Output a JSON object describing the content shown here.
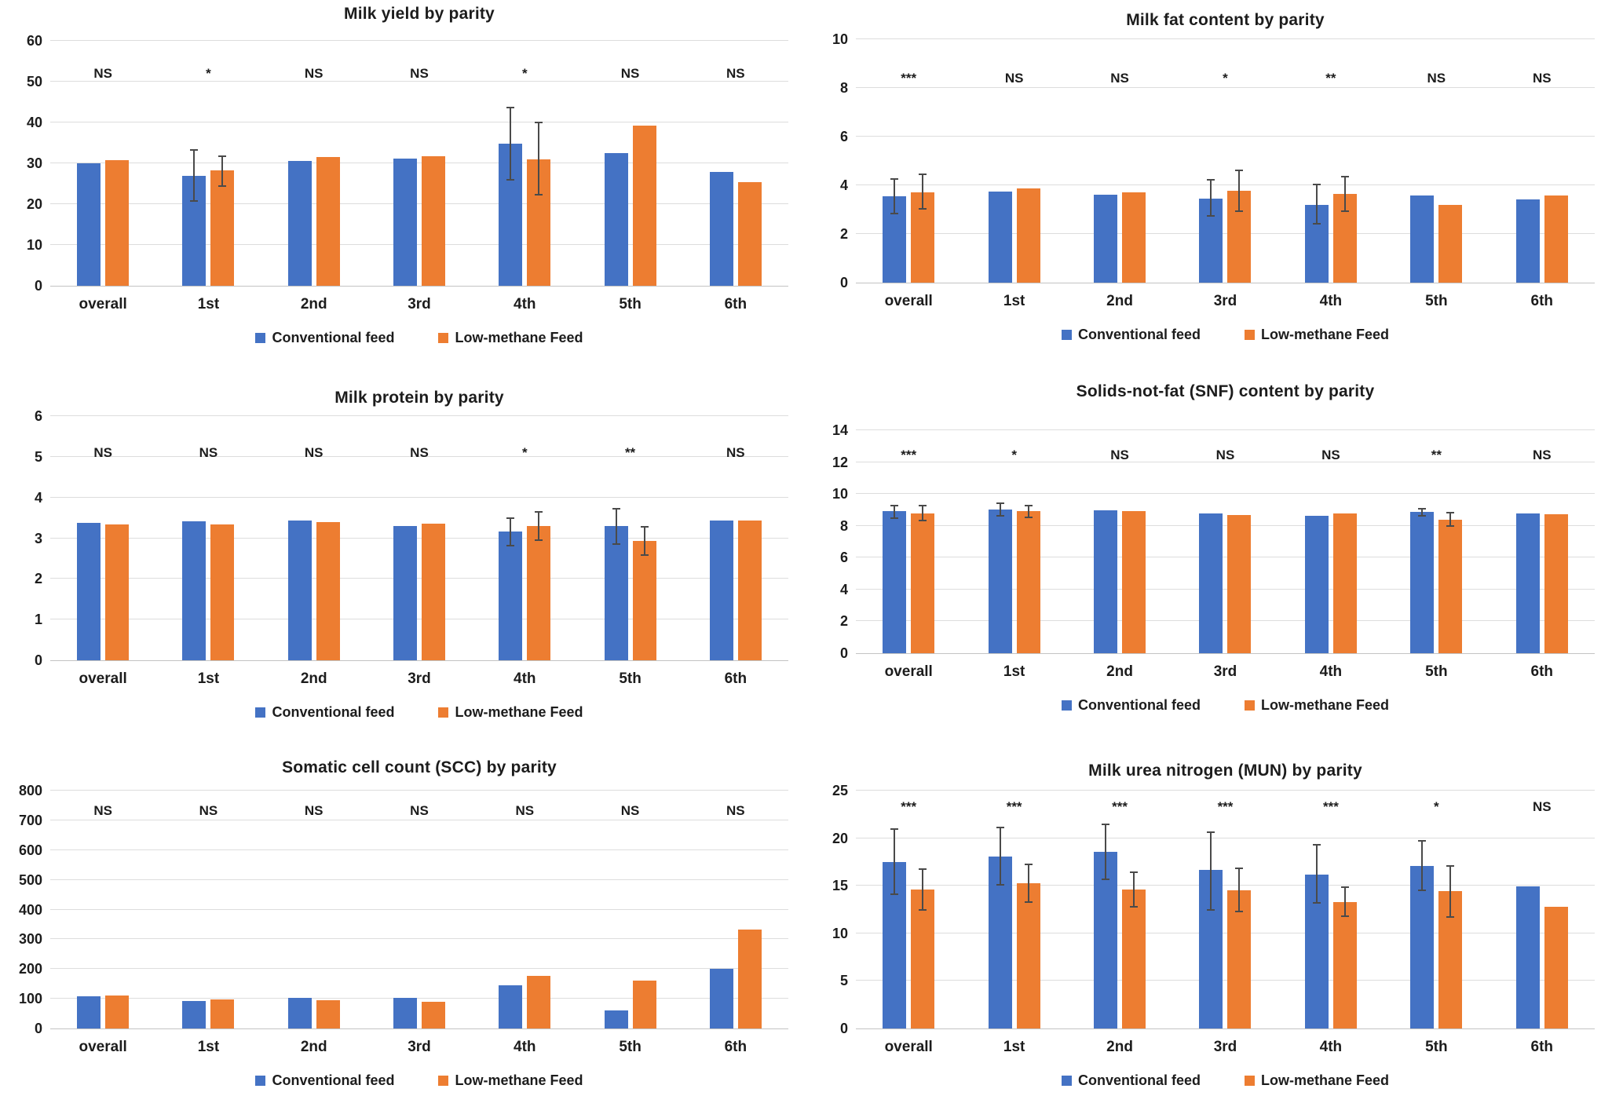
{
  "legend": {
    "items": [
      {
        "label": "Conventional feed",
        "color": "#4472C4"
      },
      {
        "label": "Low-methane Feed",
        "color": "#ED7D31"
      }
    ]
  },
  "colors": {
    "series_blue": "#4472C4",
    "series_orange": "#ED7D31",
    "gridline": "#DDDDDD",
    "error_bar": "#4A4A4A",
    "text": "#1C1C1C"
  },
  "chart_data": [
    {
      "type": "bar",
      "title": "Milk yield by parity",
      "categories": [
        "overall",
        "1st",
        "2nd",
        "3rd",
        "4th",
        "5th",
        "6th"
      ],
      "ylim": [
        0,
        60
      ],
      "ystep": 10,
      "yticks": [
        "0",
        "10",
        "20",
        "30",
        "40",
        "50",
        "60"
      ],
      "grid": true,
      "legend_position": "bottom",
      "sig_y": 52,
      "significance": [
        "NS",
        "*",
        "NS",
        "NS",
        "*",
        "NS",
        "NS"
      ],
      "series": [
        {
          "name": "Conventional feed",
          "color": "#4472C4",
          "values": [
            30.0,
            26.9,
            30.6,
            31.2,
            34.8,
            32.5,
            27.9
          ],
          "error_bars": [
            null,
            [
              20.5,
              33.5
            ],
            null,
            null,
            [
              25.8,
              43.8
            ],
            null,
            null
          ]
        },
        {
          "name": "Low-methane Feed",
          "color": "#ED7D31",
          "values": [
            30.8,
            28.2,
            31.5,
            31.8,
            30.9,
            39.2,
            25.4
          ],
          "error_bars": [
            null,
            [
              24.3,
              32.0
            ],
            null,
            null,
            [
              22.2,
              40.2
            ],
            null,
            null
          ]
        }
      ]
    },
    {
      "type": "bar",
      "title": "Milk fat content by parity",
      "categories": [
        "overall",
        "1st",
        "2nd",
        "3rd",
        "4th",
        "5th",
        "6th"
      ],
      "ylim": [
        0,
        10
      ],
      "ystep": 2,
      "yticks": [
        "0",
        "2",
        "4",
        "6",
        "8",
        "10"
      ],
      "grid": true,
      "legend_position": "bottom",
      "sig_y": 8.4,
      "significance": [
        "***",
        "NS",
        "NS",
        "*",
        "**",
        "NS",
        "NS"
      ],
      "series": [
        {
          "name": "Conventional feed",
          "color": "#4472C4",
          "values": [
            3.55,
            3.75,
            3.62,
            3.45,
            3.2,
            3.58,
            3.42
          ],
          "error_bars": [
            [
              2.8,
              4.3
            ],
            null,
            null,
            [
              2.7,
              4.25
            ],
            [
              2.4,
              4.05
            ],
            null,
            null
          ]
        },
        {
          "name": "Low-methane Feed",
          "color": "#ED7D31",
          "values": [
            3.72,
            3.88,
            3.7,
            3.76,
            3.66,
            3.2,
            3.58
          ],
          "error_bars": [
            [
              3.0,
              4.5
            ],
            null,
            null,
            [
              2.9,
              4.65
            ],
            [
              2.9,
              4.4
            ],
            null,
            null
          ]
        }
      ]
    },
    {
      "type": "bar",
      "title": "Milk protein by parity",
      "categories": [
        "overall",
        "1st",
        "2nd",
        "3rd",
        "4th",
        "5th",
        "6th"
      ],
      "ylim": [
        0,
        6
      ],
      "ystep": 1,
      "yticks": [
        "0",
        "1",
        "2",
        "3",
        "4",
        "5",
        "6"
      ],
      "grid": true,
      "legend_position": "bottom",
      "sig_y": 5.1,
      "significance": [
        "NS",
        "NS",
        "NS",
        "NS",
        "*",
        "**",
        "NS"
      ],
      "series": [
        {
          "name": "Conventional feed",
          "color": "#4472C4",
          "values": [
            3.37,
            3.41,
            3.44,
            3.3,
            3.16,
            3.3,
            3.43
          ],
          "error_bars": [
            null,
            null,
            null,
            null,
            [
              2.8,
              3.52
            ],
            [
              2.83,
              3.75
            ],
            null
          ]
        },
        {
          "name": "Low-methane Feed",
          "color": "#ED7D31",
          "values": [
            3.33,
            3.33,
            3.39,
            3.35,
            3.3,
            2.94,
            3.44
          ],
          "error_bars": [
            null,
            null,
            null,
            null,
            [
              2.93,
              3.67
            ],
            [
              2.57,
              3.3
            ],
            null
          ]
        }
      ]
    },
    {
      "type": "bar",
      "title": "Solids-not-fat (SNF) content by parity",
      "categories": [
        "overall",
        "1st",
        "2nd",
        "3rd",
        "4th",
        "5th",
        "6th"
      ],
      "ylim": [
        0,
        14
      ],
      "ystep": 2,
      "yticks": [
        "0",
        "2",
        "4",
        "6",
        "8",
        "10",
        "12",
        "14"
      ],
      "grid": true,
      "legend_position": "bottom",
      "sig_y": 12.4,
      "significance": [
        "***",
        "*",
        "NS",
        "NS",
        "NS",
        "**",
        "NS"
      ],
      "series": [
        {
          "name": "Conventional feed",
          "color": "#4472C4",
          "values": [
            8.9,
            9.0,
            8.95,
            8.8,
            8.65,
            8.85,
            8.8
          ],
          "error_bars": [
            [
              8.45,
              9.3
            ],
            [
              8.6,
              9.45
            ],
            null,
            null,
            null,
            [
              8.6,
              9.1
            ],
            null
          ]
        },
        {
          "name": "Low-methane Feed",
          "color": "#ED7D31",
          "values": [
            8.8,
            8.9,
            8.9,
            8.68,
            8.8,
            8.4,
            8.75
          ],
          "error_bars": [
            [
              8.3,
              9.3
            ],
            [
              8.5,
              9.3
            ],
            null,
            null,
            null,
            [
              7.95,
              8.85
            ],
            null
          ]
        }
      ]
    },
    {
      "type": "bar",
      "title": "Somatic cell count (SCC) by parity",
      "categories": [
        "overall",
        "1st",
        "2nd",
        "3rd",
        "4th",
        "5th",
        "6th"
      ],
      "ylim": [
        0,
        800
      ],
      "ystep": 100,
      "yticks": [
        "0",
        "100",
        "200",
        "300",
        "400",
        "500",
        "600",
        "700",
        "800"
      ],
      "grid": true,
      "legend_position": "bottom",
      "sig_y": 731,
      "significance": [
        "NS",
        "NS",
        "NS",
        "NS",
        "NS",
        "NS",
        "NS"
      ],
      "series": [
        {
          "name": "Conventional feed",
          "color": "#4472C4",
          "values": [
            107,
            92,
            103,
            103,
            145,
            60,
            200
          ],
          "error_bars": [
            null,
            null,
            null,
            null,
            null,
            null,
            null
          ]
        },
        {
          "name": "Low-methane Feed",
          "color": "#ED7D31",
          "values": [
            110,
            99,
            94,
            89,
            177,
            162,
            333
          ],
          "error_bars": [
            null,
            null,
            null,
            null,
            null,
            null,
            null
          ]
        }
      ]
    },
    {
      "type": "bar",
      "title": "Milk urea nitrogen (MUN) by parity",
      "categories": [
        "overall",
        "1st",
        "2nd",
        "3rd",
        "4th",
        "5th",
        "6th"
      ],
      "ylim": [
        0,
        25
      ],
      "ystep": 5,
      "yticks": [
        "0",
        "5",
        "10",
        "15",
        "20",
        "25"
      ],
      "grid": true,
      "legend_position": "bottom",
      "sig_y": 23.3,
      "significance": [
        "***",
        "***",
        "***",
        "***",
        "***",
        "*",
        "NS"
      ],
      "series": [
        {
          "name": "Conventional feed",
          "color": "#4472C4",
          "values": [
            17.5,
            18.1,
            18.6,
            16.7,
            16.2,
            17.1,
            14.9
          ],
          "error_bars": [
            [
              14.0,
              21.0
            ],
            [
              15.0,
              21.2
            ],
            [
              15.6,
              21.5
            ],
            [
              12.4,
              20.7
            ],
            [
              13.1,
              19.4
            ],
            [
              14.4,
              19.8
            ],
            null
          ]
        },
        {
          "name": "Low-methane Feed",
          "color": "#ED7D31",
          "values": [
            14.6,
            15.3,
            14.6,
            14.5,
            13.3,
            14.4,
            12.8
          ],
          "error_bars": [
            [
              12.4,
              16.8
            ],
            [
              13.2,
              17.3
            ],
            [
              12.7,
              16.5
            ],
            [
              12.2,
              16.9
            ],
            [
              11.7,
              14.9
            ],
            [
              11.6,
              17.2
            ],
            null
          ]
        }
      ]
    }
  ]
}
